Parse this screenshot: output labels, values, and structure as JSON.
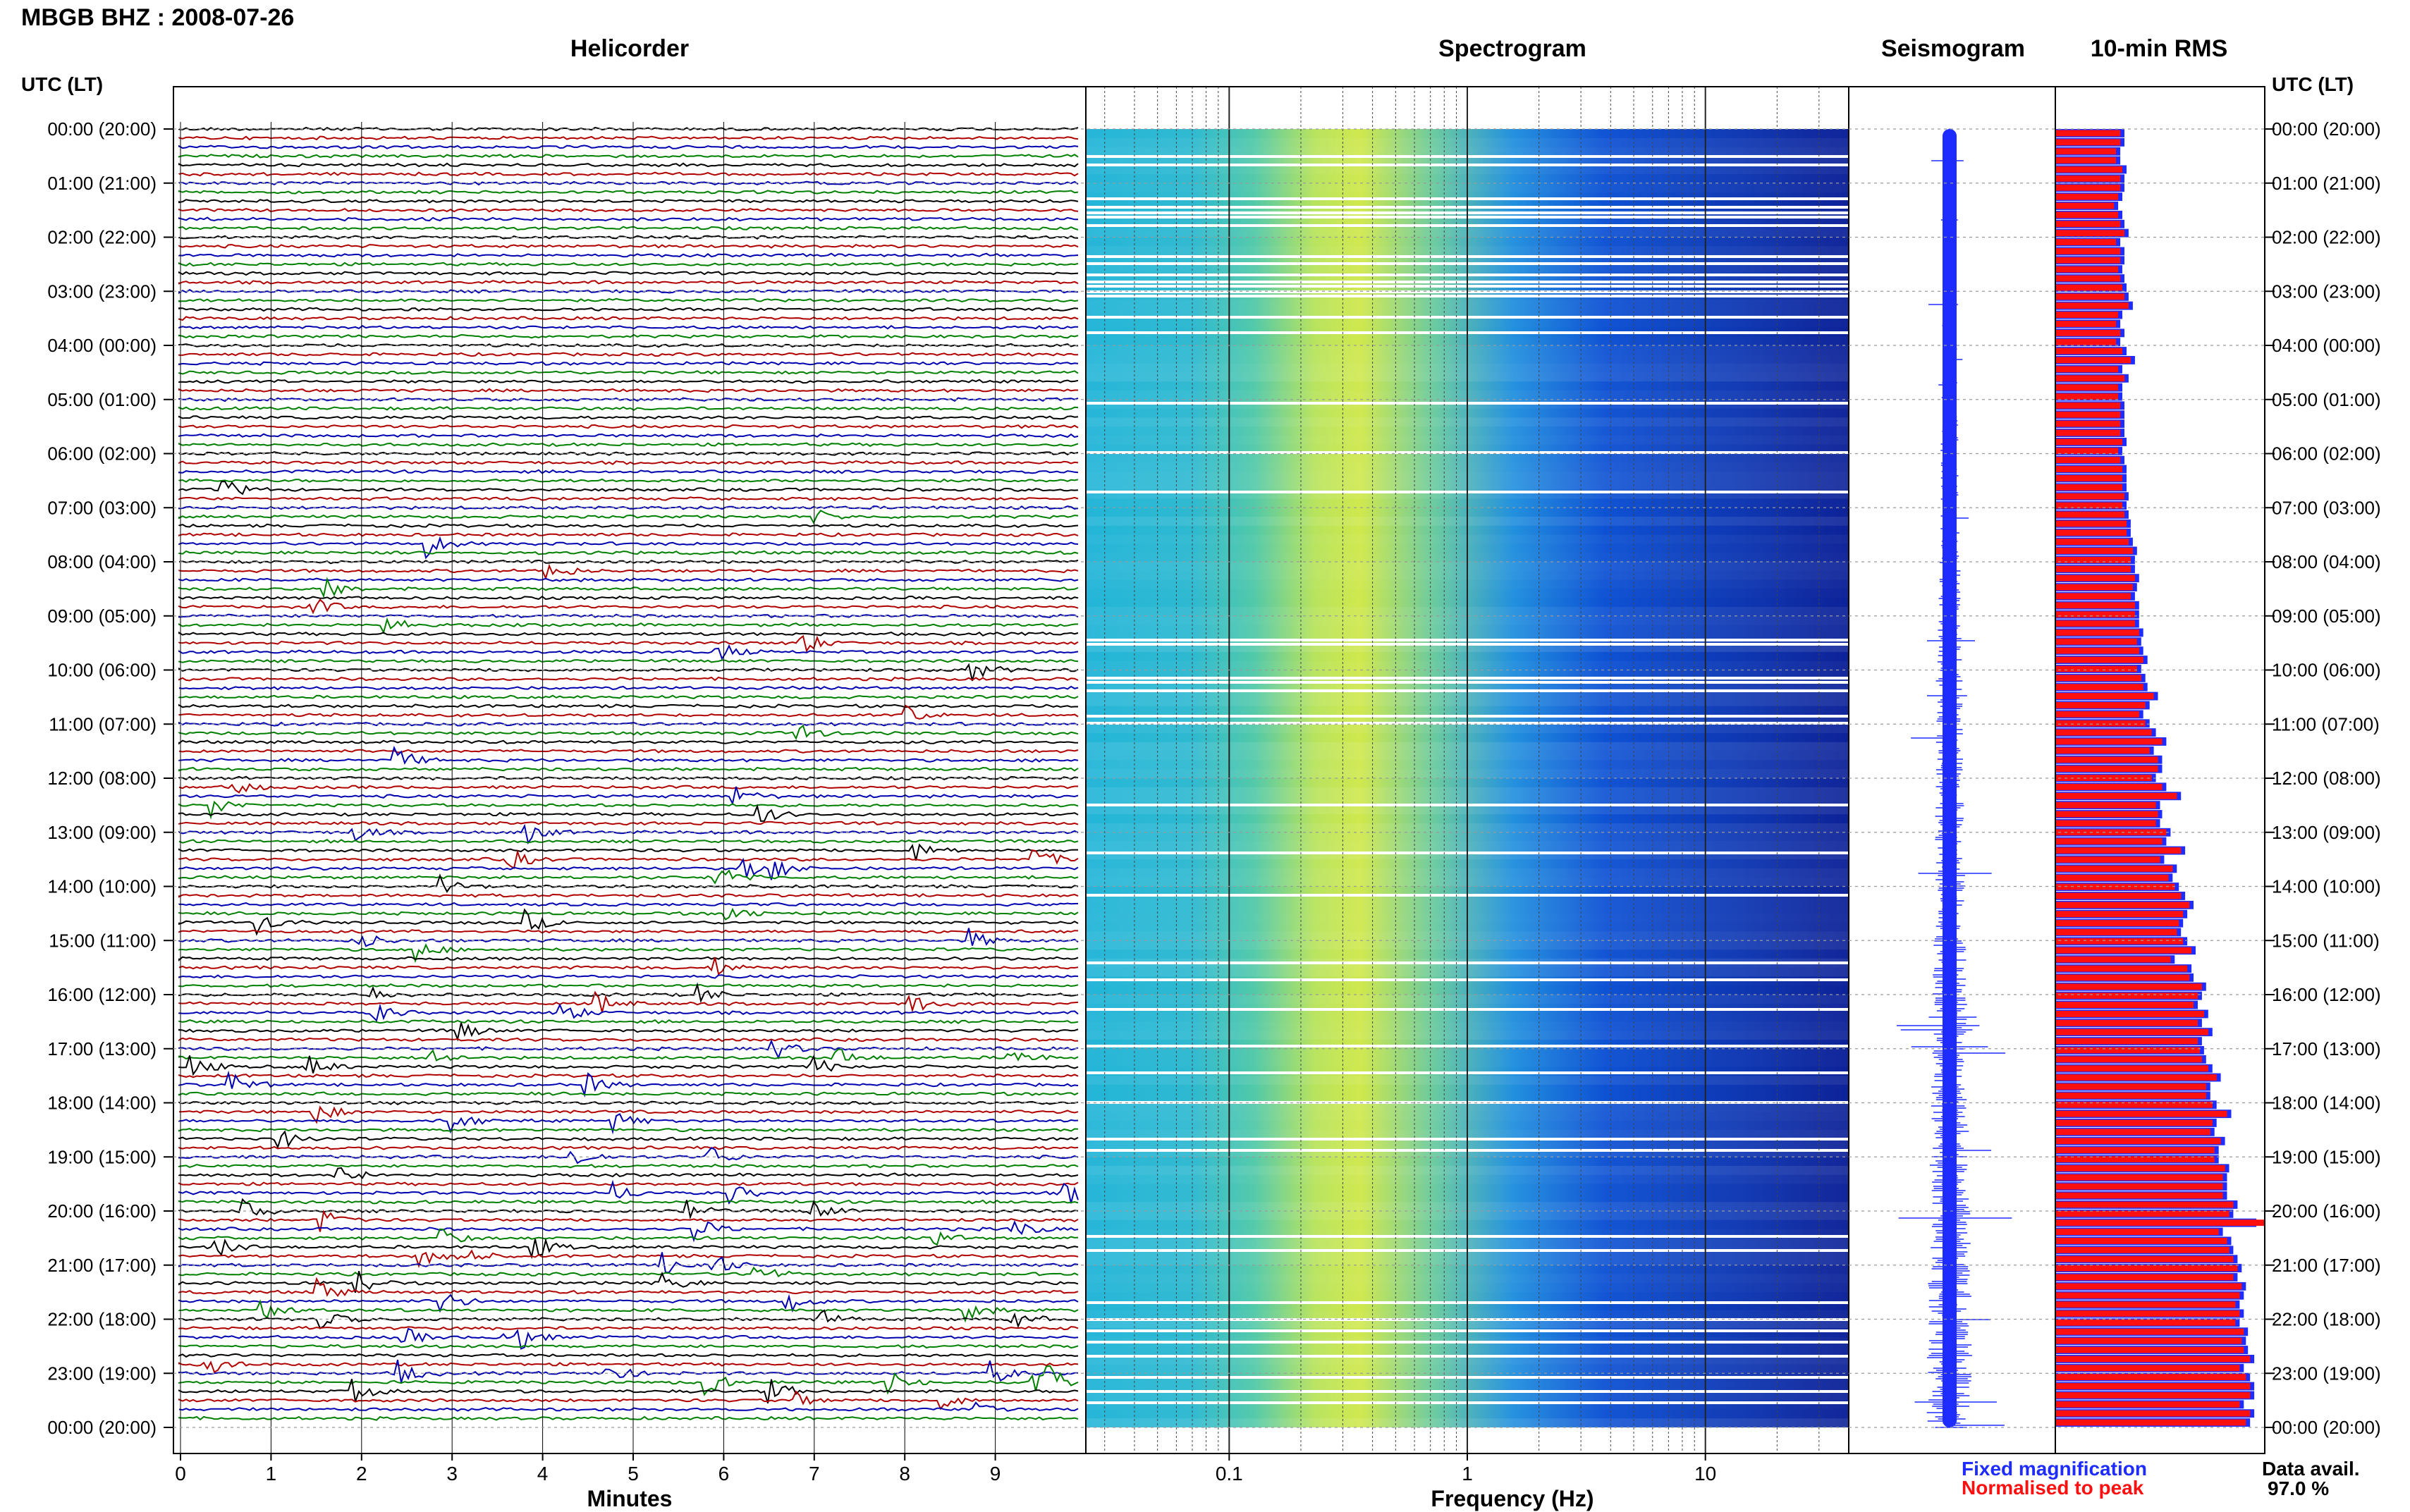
{
  "station_title": "MBGB BHZ : 2008-07-26",
  "panels": {
    "helicorder": "Helicorder",
    "spectrogram": "Spectrogram",
    "seismogram": "Seismogram",
    "rms": "10-min RMS"
  },
  "time_axis_label": "UTC (LT)",
  "hour_labels": [
    "00:00 (20:00)",
    "01:00 (21:00)",
    "02:00 (22:00)",
    "03:00 (23:00)",
    "04:00 (00:00)",
    "05:00 (01:00)",
    "06:00 (02:00)",
    "07:00 (03:00)",
    "08:00 (04:00)",
    "09:00 (05:00)",
    "10:00 (06:00)",
    "11:00 (07:00)",
    "12:00 (08:00)",
    "13:00 (09:00)",
    "14:00 (10:00)",
    "15:00 (11:00)",
    "16:00 (12:00)",
    "17:00 (13:00)",
    "18:00 (14:00)",
    "19:00 (15:00)",
    "20:00 (16:00)",
    "21:00 (17:00)",
    "22:00 (18:00)",
    "23:00 (19:00)",
    "00:00 (20:00)"
  ],
  "helicorder_axis": {
    "label": "Minutes",
    "ticks": [
      "0",
      "1",
      "2",
      "3",
      "4",
      "5",
      "6",
      "7",
      "8",
      "9"
    ],
    "trace_colors": [
      "#000000",
      "#b00000",
      "#0000b0",
      "#008000"
    ]
  },
  "spectrogram_axis": {
    "label": "Frequency (Hz)",
    "ticks": [
      "0.1",
      "1",
      "10"
    ],
    "range_hz": [
      0.025,
      40
    ]
  },
  "legend": {
    "fixed": "Fixed magnification",
    "normalised": "Normalised to peak",
    "fixed_color": "#1f2cff",
    "normalised_color": "#ff1010"
  },
  "data_availability": {
    "label": "Data avail.",
    "value": "97.0 %"
  },
  "colors": {
    "seismogram": "#1f2cff",
    "rms_fill": "#ff1010",
    "rms_edge": "#1f2cff",
    "grid": "#9a9a9a"
  },
  "chart_data": {
    "type": "bar",
    "title": "10-min RMS",
    "series": [
      {
        "name": "Fixed magnification",
        "values": [
          0.33,
          0.33,
          0.31,
          0.31,
          0.34,
          0.33,
          0.33,
          0.32,
          0.3,
          0.32,
          0.33,
          0.35,
          0.31,
          0.33,
          0.33,
          0.32,
          0.33,
          0.34,
          0.35,
          0.37,
          0.32,
          0.31,
          0.33,
          0.31,
          0.34,
          0.38,
          0.32,
          0.35,
          0.32,
          0.32,
          0.33,
          0.33,
          0.33,
          0.33,
          0.34,
          0.32,
          0.33,
          0.34,
          0.34,
          0.34,
          0.35,
          0.34,
          0.35,
          0.36,
          0.36,
          0.37,
          0.39,
          0.38,
          0.38,
          0.4,
          0.39,
          0.38,
          0.4,
          0.4,
          0.4,
          0.42,
          0.41,
          0.42,
          0.44,
          0.41,
          0.43,
          0.44,
          0.49,
          0.45,
          0.42,
          0.45,
          0.48,
          0.53,
          0.47,
          0.51,
          0.51,
          0.48,
          0.53,
          0.6,
          0.5,
          0.51,
          0.5,
          0.55,
          0.53,
          0.62,
          0.52,
          0.58,
          0.56,
          0.59,
          0.62,
          0.66,
          0.63,
          0.61,
          0.6,
          0.63,
          0.67,
          0.57,
          0.65,
          0.66,
          0.72,
          0.7,
          0.68,
          0.73,
          0.7,
          0.75,
          0.7,
          0.71,
          0.72,
          0.75,
          0.79,
          0.74,
          0.74,
          0.77,
          0.84,
          0.77,
          0.76,
          0.81,
          0.78,
          0.78,
          0.83,
          0.82,
          0.82,
          0.82,
          0.87,
          0.85,
          0.96,
          0.8,
          0.84,
          0.85,
          0.87,
          0.89,
          0.87,
          0.91,
          0.9,
          0.88,
          0.9,
          0.88,
          0.92,
          0.91,
          0.92,
          0.95,
          0.9,
          0.93,
          0.95,
          0.95,
          0.9,
          0.95,
          0.93
        ]
      },
      {
        "name": "Normalised to peak",
        "values": [
          0.31,
          0.31,
          0.29,
          0.29,
          0.32,
          0.31,
          0.31,
          0.3,
          0.28,
          0.3,
          0.31,
          0.33,
          0.29,
          0.31,
          0.31,
          0.3,
          0.31,
          0.32,
          0.33,
          0.35,
          0.3,
          0.29,
          0.31,
          0.29,
          0.32,
          0.36,
          0.3,
          0.33,
          0.3,
          0.3,
          0.31,
          0.31,
          0.31,
          0.31,
          0.32,
          0.3,
          0.31,
          0.32,
          0.32,
          0.32,
          0.33,
          0.32,
          0.33,
          0.34,
          0.34,
          0.35,
          0.37,
          0.36,
          0.36,
          0.38,
          0.37,
          0.36,
          0.38,
          0.38,
          0.38,
          0.4,
          0.39,
          0.4,
          0.42,
          0.39,
          0.41,
          0.42,
          0.47,
          0.43,
          0.4,
          0.43,
          0.46,
          0.51,
          0.45,
          0.49,
          0.49,
          0.46,
          0.51,
          0.58,
          0.48,
          0.49,
          0.48,
          0.53,
          0.51,
          0.6,
          0.5,
          0.56,
          0.54,
          0.57,
          0.6,
          0.64,
          0.61,
          0.59,
          0.58,
          0.61,
          0.65,
          0.55,
          0.63,
          0.64,
          0.7,
          0.68,
          0.66,
          0.71,
          0.68,
          0.73,
          0.68,
          0.69,
          0.7,
          0.73,
          0.77,
          0.72,
          0.72,
          0.75,
          0.82,
          0.75,
          0.74,
          0.79,
          0.76,
          0.76,
          0.81,
          0.8,
          0.8,
          0.8,
          0.85,
          0.83,
          1.0,
          0.78,
          0.82,
          0.83,
          0.85,
          0.87,
          0.85,
          0.89,
          0.88,
          0.86,
          0.88,
          0.86,
          0.9,
          0.89,
          0.9,
          0.93,
          0.88,
          0.91,
          0.93,
          0.93,
          0.88,
          0.93,
          0.91
        ]
      }
    ],
    "ylim": [
      0,
      1
    ]
  }
}
